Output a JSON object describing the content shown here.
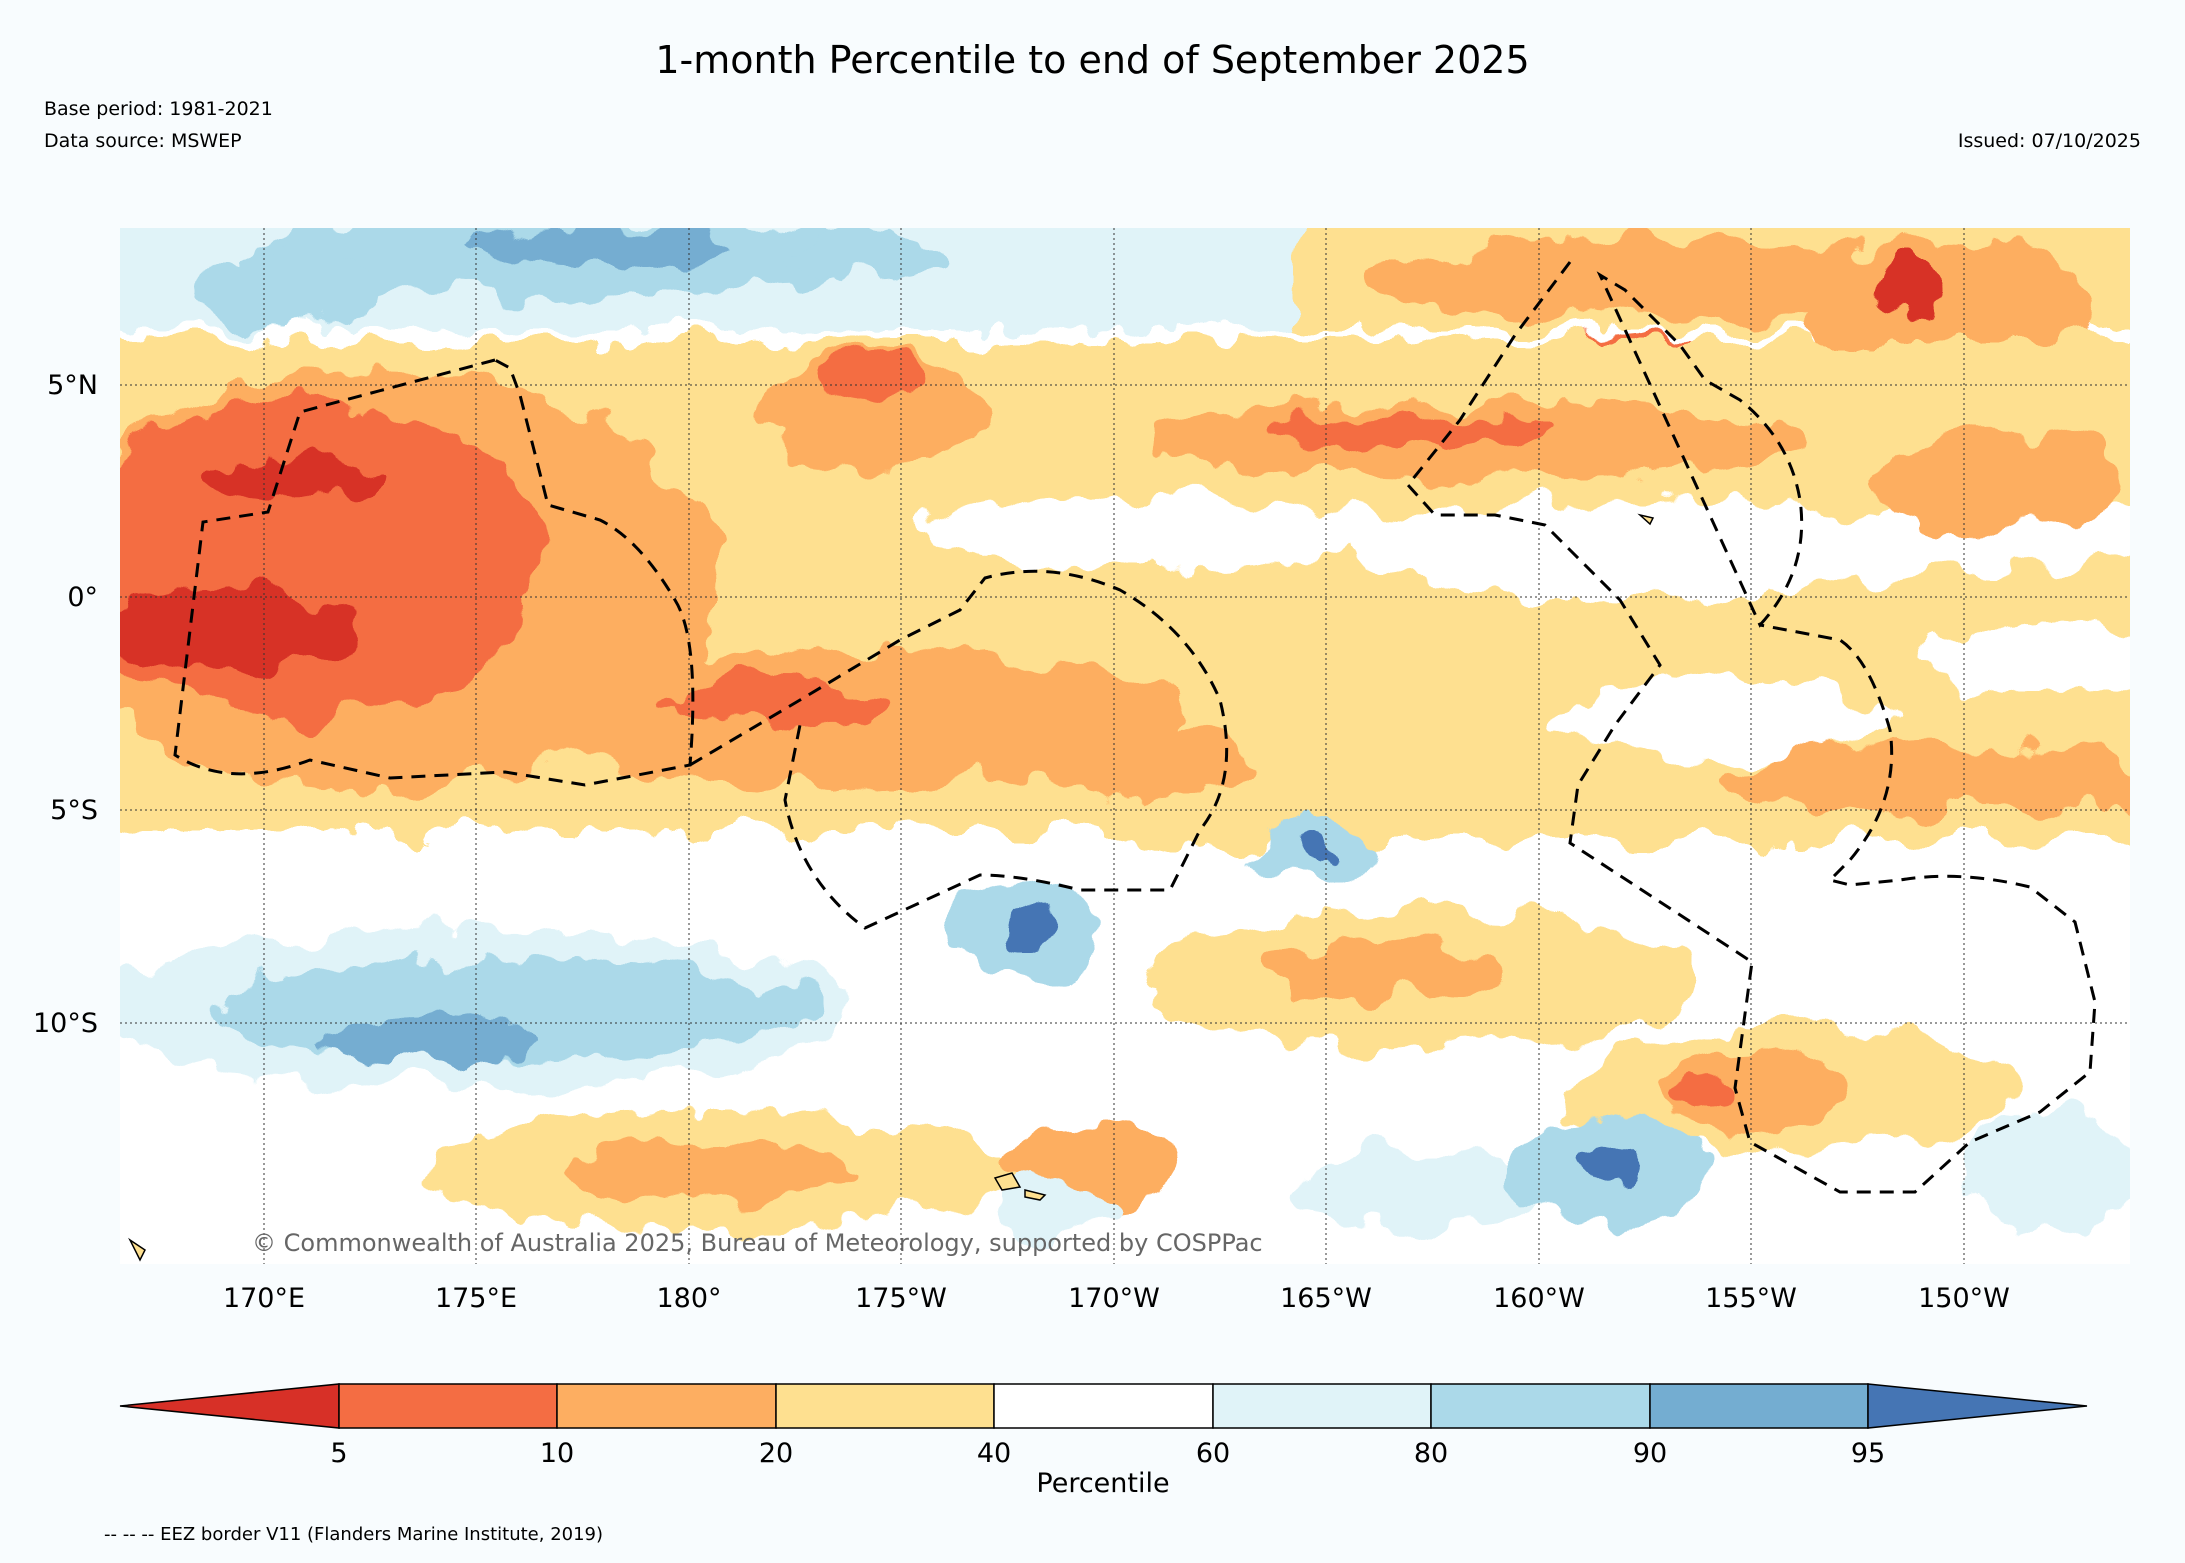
{
  "title": "1-month Percentile to end of September 2025",
  "base_period": "Base period: 1981-2021",
  "data_source": "Data source: MSWEP",
  "issued": "Issued: 07/10/2025",
  "copyright": "© Commonwealth of Australia 2025, Bureau of Meteorology, supported by COSPPac",
  "lat_labels": [
    "5°N",
    "0°",
    "5°S",
    "10°S"
  ],
  "lon_labels": [
    "170°E",
    "175°E",
    "180°",
    "175°W",
    "170°W",
    "165°W",
    "160°W",
    "155°W",
    "150°W"
  ],
  "colorbar": {
    "label": "Percentile",
    "ticks": [
      "5",
      "10",
      "20",
      "40",
      "60",
      "80",
      "90",
      "95"
    ],
    "colors": [
      "#d73027",
      "#f46d43",
      "#fdae61",
      "#fee090",
      "#ffffff",
      "#e0f3f8",
      "#abd9e9",
      "#74add1",
      "#4575b4"
    ]
  },
  "footnote": "-- -- -- EEZ border V11 (Flanders Marine Institute, 2019)"
}
